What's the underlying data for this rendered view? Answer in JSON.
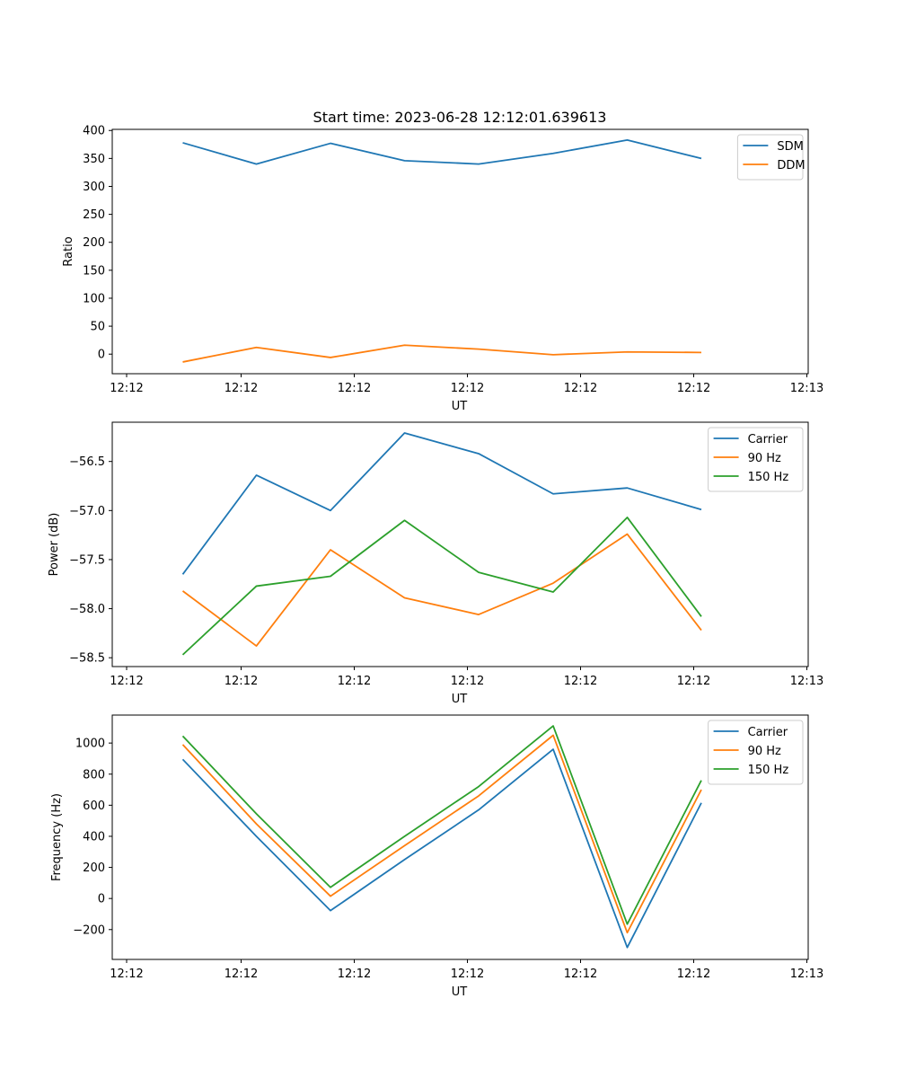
{
  "figure": {
    "title": "Start time: 2023-06-28 12:12:01.639613"
  },
  "chart_data": [
    {
      "type": "line",
      "title": "Start time: 2023-06-28 12:12:01.639613",
      "xlabel": "UT",
      "ylabel": "Ratio",
      "x_tick_labels": [
        "12:12",
        "12:12",
        "12:12",
        "12:12",
        "12:12",
        "12:12",
        "12:12",
        "12:13"
      ],
      "y_ticks": [
        0,
        50,
        100,
        150,
        200,
        250,
        300,
        350,
        400
      ],
      "ylim": [
        -35,
        402
      ],
      "legend_position": "upper right",
      "series": [
        {
          "name": "SDM",
          "color": "#1f77b4",
          "values": [
            378,
            340,
            377,
            346,
            340,
            359,
            383,
            350
          ]
        },
        {
          "name": "DDM",
          "color": "#ff7f0e",
          "values": [
            -14,
            12,
            -6,
            16,
            9,
            -1,
            4,
            3
          ]
        }
      ]
    },
    {
      "type": "line",
      "title": "",
      "xlabel": "UT",
      "ylabel": "Power (dB)",
      "x_tick_labels": [
        "12:12",
        "12:12",
        "12:12",
        "12:12",
        "12:12",
        "12:12",
        "12:12",
        "12:13"
      ],
      "y_ticks": [
        -58.5,
        -58.0,
        -57.5,
        -57.0,
        -56.5
      ],
      "y_tick_labels": [
        "−58.5",
        "−58.0",
        "−57.5",
        "−57.0",
        "−56.5"
      ],
      "ylim": [
        -58.59,
        -56.1
      ],
      "legend_position": "upper right",
      "series": [
        {
          "name": "Carrier",
          "color": "#1f77b4",
          "values": [
            -57.65,
            -56.64,
            -57.0,
            -56.21,
            -56.42,
            -56.83,
            -56.77,
            -56.99
          ]
        },
        {
          "name": "90 Hz",
          "color": "#ff7f0e",
          "values": [
            -57.82,
            -58.38,
            -57.4,
            -57.89,
            -58.06,
            -57.74,
            -57.24,
            -58.22
          ]
        },
        {
          "name": "150 Hz",
          "color": "#2ca02c",
          "values": [
            -58.47,
            -57.77,
            -57.67,
            -57.1,
            -57.63,
            -57.83,
            -57.07,
            -58.08
          ]
        }
      ]
    },
    {
      "type": "line",
      "title": "",
      "xlabel": "UT",
      "ylabel": "Frequency (Hz)",
      "x_tick_labels": [
        "12:12",
        "12:12",
        "12:12",
        "12:12",
        "12:12",
        "12:12",
        "12:12",
        "12:13"
      ],
      "y_ticks": [
        -200,
        0,
        200,
        400,
        600,
        800,
        1000
      ],
      "y_tick_labels": [
        "−200",
        "0",
        "200",
        "400",
        "600",
        "800",
        "1000"
      ],
      "ylim": [
        -392,
        1180
      ],
      "legend_position": "upper right",
      "series": [
        {
          "name": "Carrier",
          "color": "#1f77b4",
          "values": [
            895,
            400,
            -78,
            250,
            570,
            960,
            -315,
            615
          ]
        },
        {
          "name": "90 Hz",
          "color": "#ff7f0e",
          "values": [
            990,
            480,
            15,
            340,
            660,
            1050,
            -220,
            700
          ]
        },
        {
          "name": "150 Hz",
          "color": "#2ca02c",
          "values": [
            1045,
            545,
            72,
            400,
            720,
            1110,
            -165,
            760
          ]
        }
      ]
    }
  ]
}
